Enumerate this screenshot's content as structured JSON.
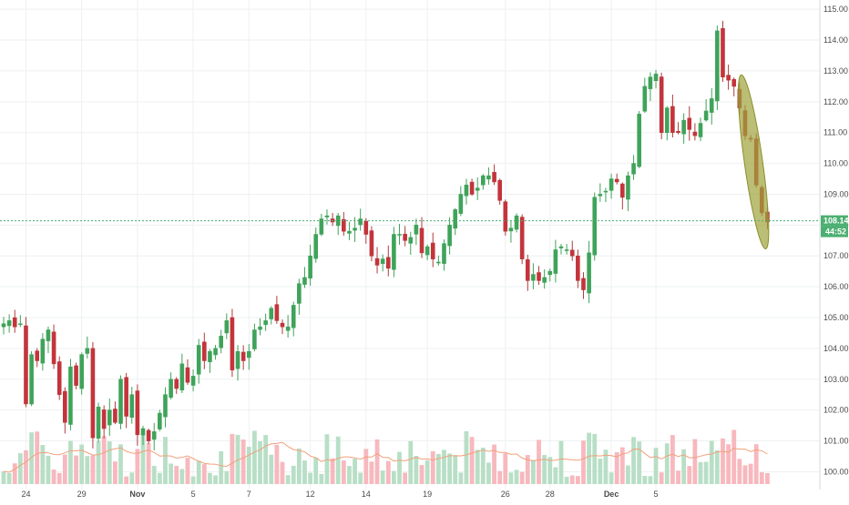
{
  "colors": {
    "up": "#3fa35a",
    "down": "#b23a3a",
    "down_body": "#c8323c",
    "volume_up": "#b8dfc6",
    "volume_down": "#f7b8be",
    "volume_ma": "#f2a07b",
    "grid": "#eef0f2",
    "price_line": "#4caf72",
    "annotation_fill": "#9ea33a",
    "annotation_stroke": "#8a8f2c"
  },
  "chart_data": {
    "type": "candlestick",
    "price_axis": {
      "ylim": [
        99.6,
        115.3
      ],
      "ticks": [
        "100.00",
        "101.00",
        "102.00",
        "103.00",
        "104.00",
        "105.00",
        "106.00",
        "107.00",
        "108.00",
        "109.00",
        "110.00",
        "111.00",
        "112.00",
        "113.00",
        "114.00",
        "115.00"
      ]
    },
    "x_ticks": [
      {
        "label": "24",
        "index": 4,
        "strong": false
      },
      {
        "label": "29",
        "index": 14,
        "strong": false
      },
      {
        "label": "Nov",
        "index": 24,
        "strong": true
      },
      {
        "label": "5",
        "index": 34,
        "strong": false
      },
      {
        "label": "7",
        "index": 44,
        "strong": false
      },
      {
        "label": "12",
        "index": 55,
        "strong": false
      },
      {
        "label": "14",
        "index": 65,
        "strong": false
      },
      {
        "label": "19",
        "index": 76,
        "strong": false
      },
      {
        "label": "26",
        "index": 90,
        "strong": false
      },
      {
        "label": "28",
        "index": 98,
        "strong": false
      },
      {
        "label": "Dec",
        "index": 109,
        "strong": true
      },
      {
        "label": "5",
        "index": 117,
        "strong": false
      }
    ],
    "last_price": "108.14",
    "countdown": "44:52",
    "last_price_value": 108.14,
    "closes": [
      104.8,
      104.9,
      104.7,
      104.8,
      102.2,
      103.8,
      103.6,
      104.3,
      104.6,
      103.5,
      102.5,
      101.6,
      103.4,
      102.8,
      103.8,
      104.0,
      101.1,
      102.1,
      101.4,
      102.0,
      101.6,
      103.0,
      101.8,
      102.5,
      101.2,
      101.4,
      101.0,
      101.3,
      101.9,
      102.5,
      103.0,
      102.7,
      103.5,
      102.9,
      103.1,
      104.1,
      103.6,
      103.9,
      104.0,
      104.4,
      104.9,
      103.3,
      103.9,
      103.6,
      103.9,
      104.6,
      104.7,
      104.9,
      105.3,
      104.9,
      104.7,
      104.7,
      105.4,
      106.1,
      106.3,
      107.0,
      107.7,
      108.2,
      108.3,
      108.1,
      108.3,
      107.8,
      107.8,
      107.9,
      108.2,
      107.7,
      107.0,
      106.7,
      106.9,
      106.6,
      107.7,
      107.7,
      107.5,
      107.6,
      108.0,
      107.1,
      107.3,
      106.9,
      106.8,
      107.4,
      108.0,
      108.5,
      109.0,
      109.3,
      109.0,
      109.2,
      109.6,
      109.6,
      109.4,
      108.8,
      107.8,
      107.9,
      108.3,
      106.9,
      106.2,
      106.4,
      106.2,
      106.3,
      106.5,
      107.2,
      107.3,
      107.2,
      107.0,
      106.2,
      105.9,
      107.1,
      108.9,
      109.0,
      109.1,
      109.5,
      109.4,
      108.9,
      109.6,
      110.0,
      111.6,
      112.5,
      112.8,
      112.9,
      111.0,
      111.8,
      111.0,
      111.0,
      111.4,
      111.1,
      110.9,
      111.3,
      111.7,
      112.1,
      114.3,
      112.8,
      112.7,
      112.5,
      111.8,
      110.9,
      110.8,
      109.3,
      108.4,
      108.1
    ]
  },
  "indicators": {
    "volume_ma_label": "",
    "annotation": "ellipse"
  }
}
